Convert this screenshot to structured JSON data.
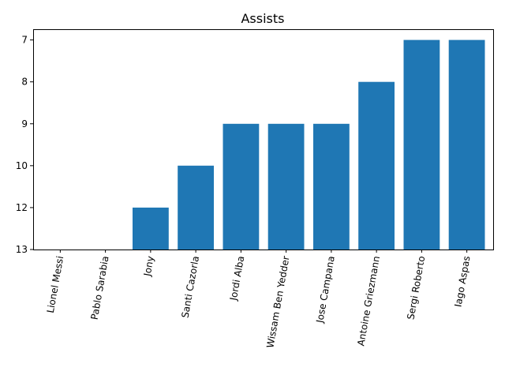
{
  "chart_data": {
    "type": "bar",
    "title": "Assists",
    "xlabel": "",
    "ylabel": "",
    "categories": [
      "Lionel Messi",
      "Pablo Sarabia",
      "Jony",
      "Santi Cazorla",
      "Jordi Alba",
      "Wissam Ben Yedder",
      "Jose Campana",
      "Antoine Griezmann",
      "Sergi Roberto",
      "Iago Aspas"
    ],
    "values": [
      13,
      13,
      12,
      10,
      9,
      9,
      9,
      8,
      7,
      7
    ],
    "y_tick_labels": [
      "13",
      "12",
      "10",
      "9",
      "8",
      "7"
    ],
    "y_axis_order": "categorical, bottom to top",
    "color": "#1f77b4",
    "grid": false,
    "legend": "none",
    "x_tick_label_rotation": "80 degrees"
  }
}
